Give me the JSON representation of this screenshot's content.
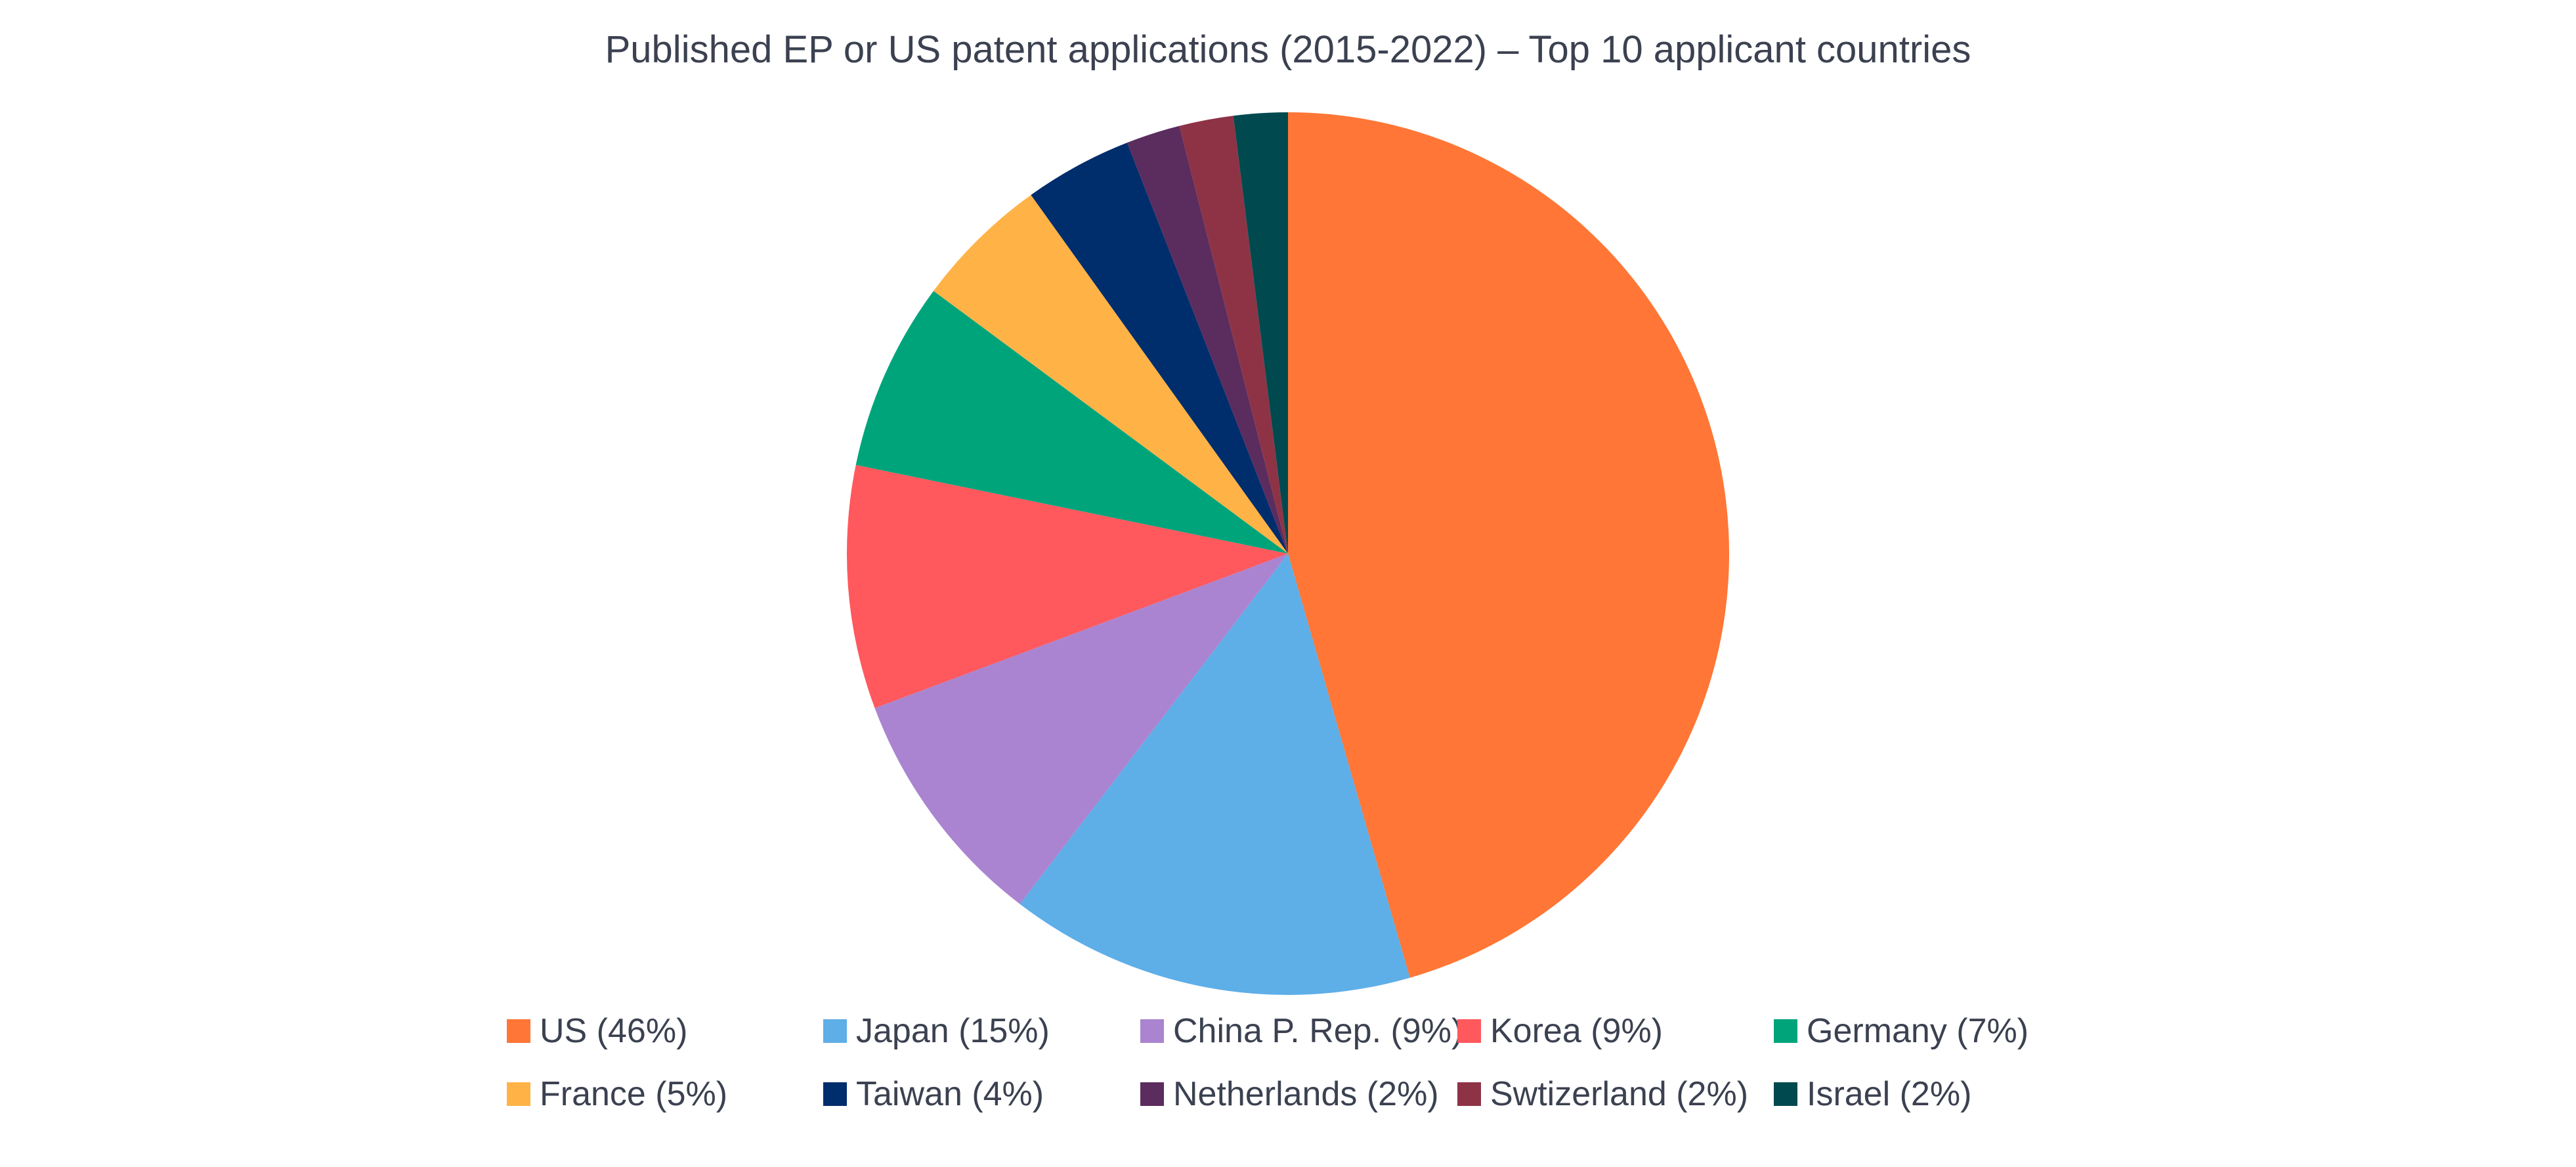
{
  "chart_data": {
    "type": "pie",
    "title": "Published EP or US patent applications (2015-2022) – Top 10 applicant countries",
    "legend_position": "bottom",
    "slices": [
      {
        "label": "US (46%)",
        "value": 46,
        "color": "#FF7636"
      },
      {
        "label": "Japan (15%)",
        "value": 15,
        "color": "#5EAEE8"
      },
      {
        "label": "China P. Rep. (9%)",
        "value": 9,
        "color": "#AA84D0"
      },
      {
        "label": "Korea (9%)",
        "value": 9,
        "color": "#FF585D"
      },
      {
        "label": "Germany (7%)",
        "value": 7,
        "color": "#00A47B"
      },
      {
        "label": "France (5%)",
        "value": 5,
        "color": "#FFB347"
      },
      {
        "label": "Taiwan (4%)",
        "value": 4,
        "color": "#002D6C"
      },
      {
        "label": "Netherlands (2%)",
        "value": 2,
        "color": "#5B2C5E"
      },
      {
        "label": "Swtizerland (2%)",
        "value": 2,
        "color": "#8E3346"
      },
      {
        "label": "Israel (2%)",
        "value": 2,
        "color": "#004A4F"
      }
    ]
  }
}
